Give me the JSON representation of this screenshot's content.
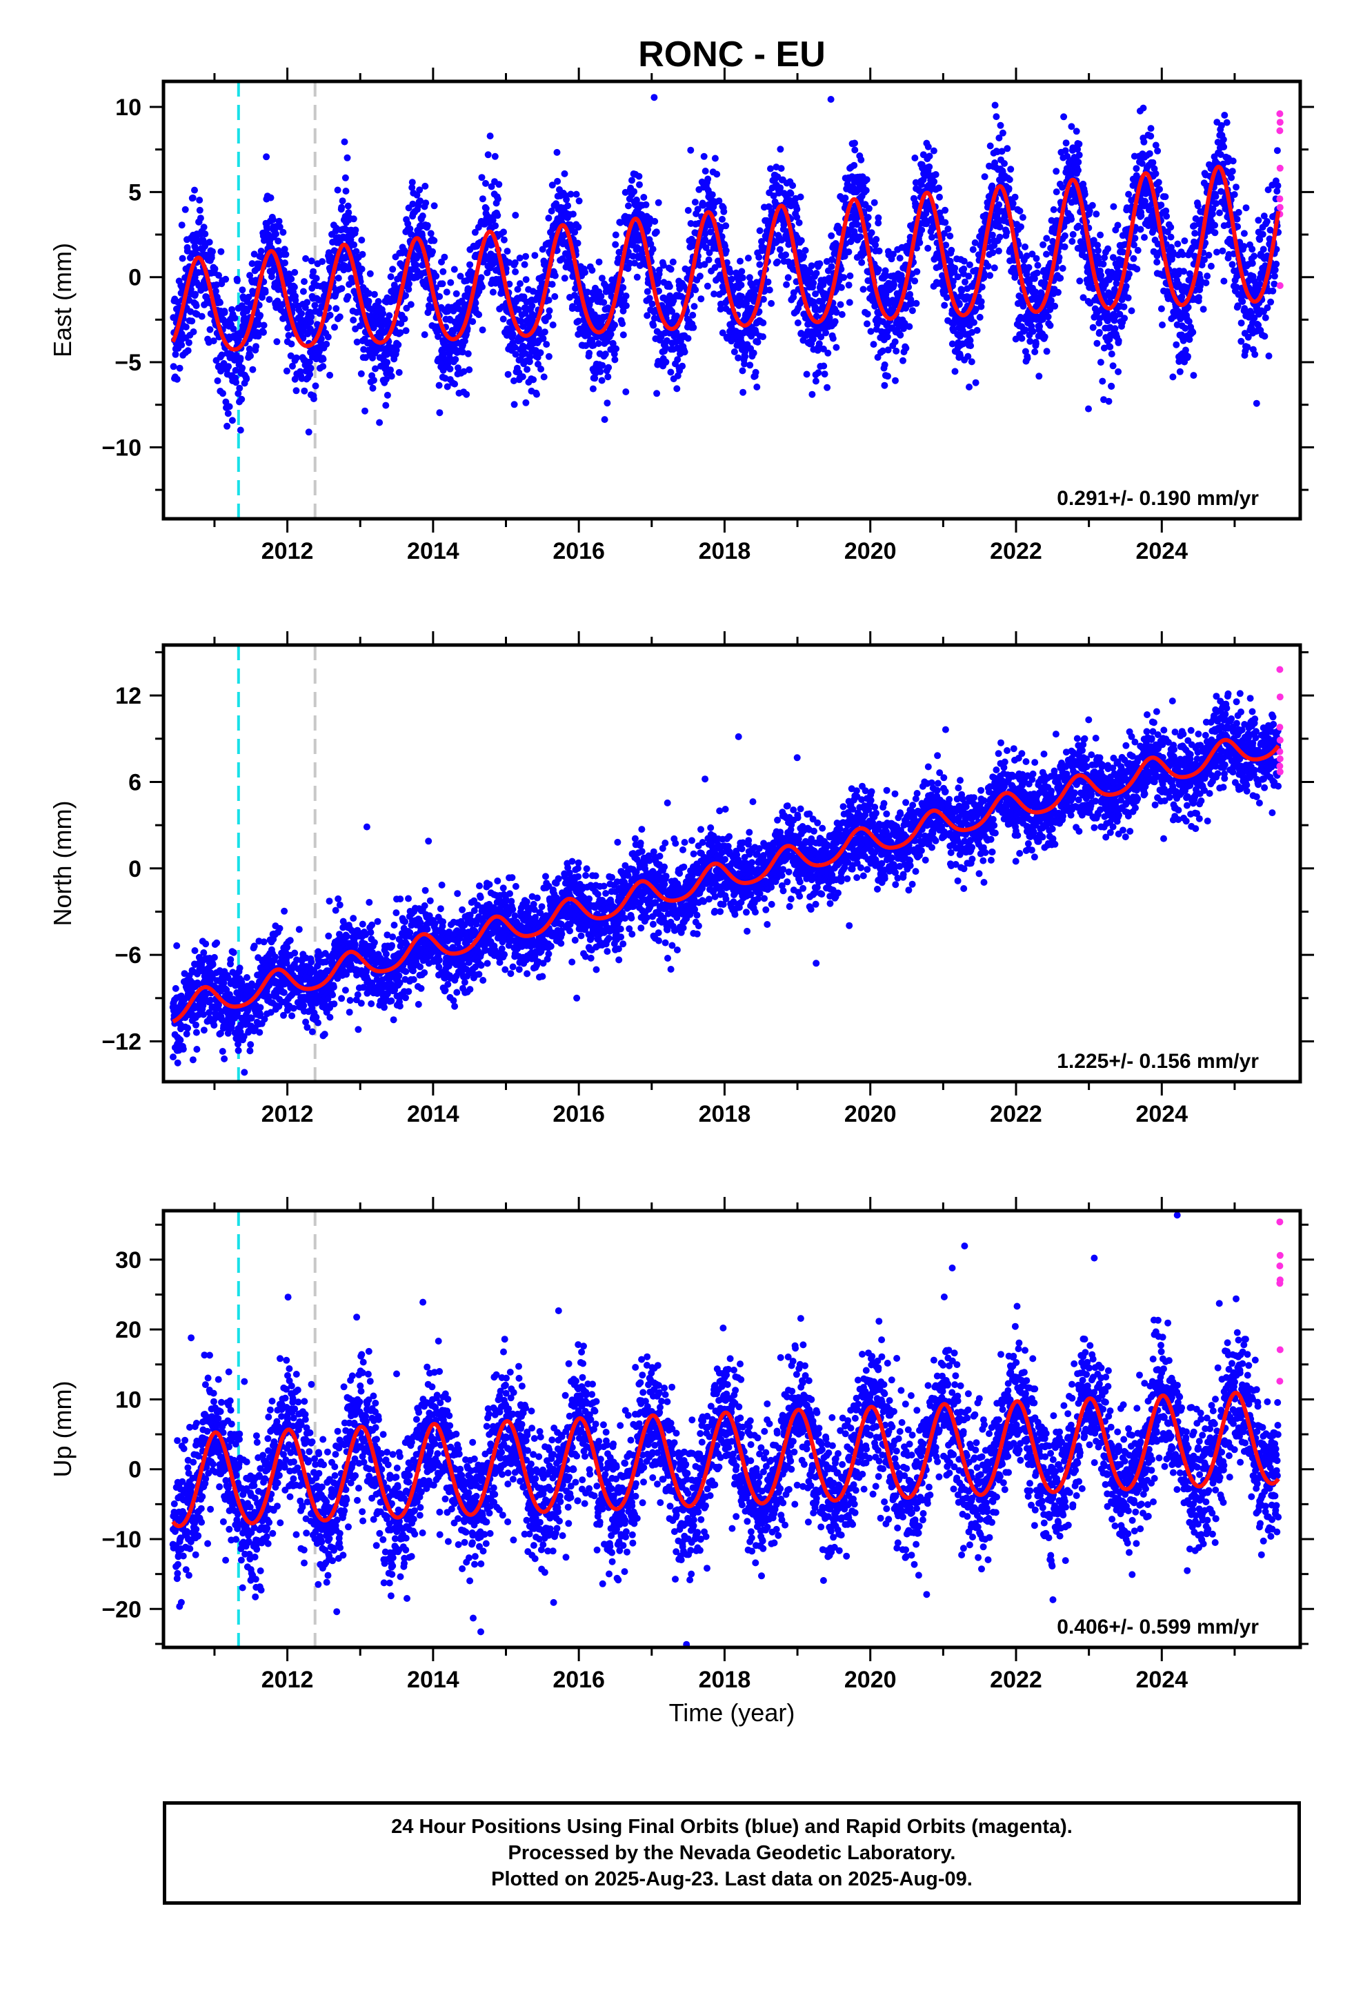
{
  "chart_data": {
    "type": "scatter",
    "title": "RONC - EU",
    "xlabel": "Time (year)",
    "xlim": [
      2010.3,
      2025.9
    ],
    "xticks": [
      2012,
      2014,
      2016,
      2018,
      2020,
      2022,
      2024
    ],
    "event_lines": [
      {
        "x": 2011.33,
        "color": "#19e0e8"
      },
      {
        "x": 2012.38,
        "color": "#c8c8c8"
      }
    ],
    "colors": {
      "final": "#0a00ff",
      "rapid": "#ff30e0",
      "model": "#ff1010"
    },
    "data_range": {
      "start": 2010.43,
      "end": 2025.6
    },
    "panels": [
      {
        "name": "east",
        "ylabel": "East (mm)",
        "ylim": [
          -14.2,
          11.5
        ],
        "yticks": [
          -10,
          -5,
          0,
          5,
          10
        ],
        "rate_label": "0.291+/- 0.190 mm/yr",
        "model": {
          "ref_year": 2018.0,
          "offset": 0.1,
          "trend": 0.291,
          "amp": 3.4,
          "amp_growth": 0.09,
          "phase": 1.4,
          "amp2": 0.4
        },
        "noise_sd": 1.7,
        "rapid_values": [
          9.6,
          9.1,
          8.6,
          6.4,
          4.6,
          4.1,
          3.7,
          -0.5
        ]
      },
      {
        "name": "north",
        "ylabel": "North (mm)",
        "ylim": [
          -14.8,
          15.5
        ],
        "yticks": [
          -12,
          -6,
          0,
          6,
          12
        ],
        "rate_label": "1.225+/- 0.156 mm/yr",
        "model": {
          "ref_year": 2018.0,
          "offset": -0.6,
          "trend": 1.225,
          "amp": 0.95,
          "amp_growth": 0.0,
          "phase": 0.9,
          "amp2": 0.15
        },
        "noise_sd": 1.4,
        "rapid_values": [
          13.8,
          11.9,
          9.8,
          8.9,
          8.1,
          7.6,
          7.1,
          6.7
        ]
      },
      {
        "name": "up",
        "ylabel": "Up (mm)",
        "ylim": [
          -25.5,
          37
        ],
        "yticks": [
          -20,
          -10,
          0,
          10,
          20,
          30
        ],
        "rate_label": "0.406+/- 0.599 mm/yr",
        "model": {
          "ref_year": 2018.0,
          "offset": 1.0,
          "trend": 0.406,
          "amp": 6.6,
          "amp_growth": 0.0,
          "phase": -0.1,
          "amp2": 0.5
        },
        "noise_sd": 4.8,
        "rapid_values": [
          35.4,
          30.6,
          29.1,
          27.1,
          26.6,
          17.1,
          12.6
        ]
      }
    ]
  },
  "footer": {
    "line1": "24 Hour Positions Using Final Orbits (blue) and Rapid Orbits (magenta).",
    "line2": "Processed by the Nevada Geodetic Laboratory.",
    "line3": "Plotted on 2025-Aug-23. Last data on 2025-Aug-09."
  }
}
